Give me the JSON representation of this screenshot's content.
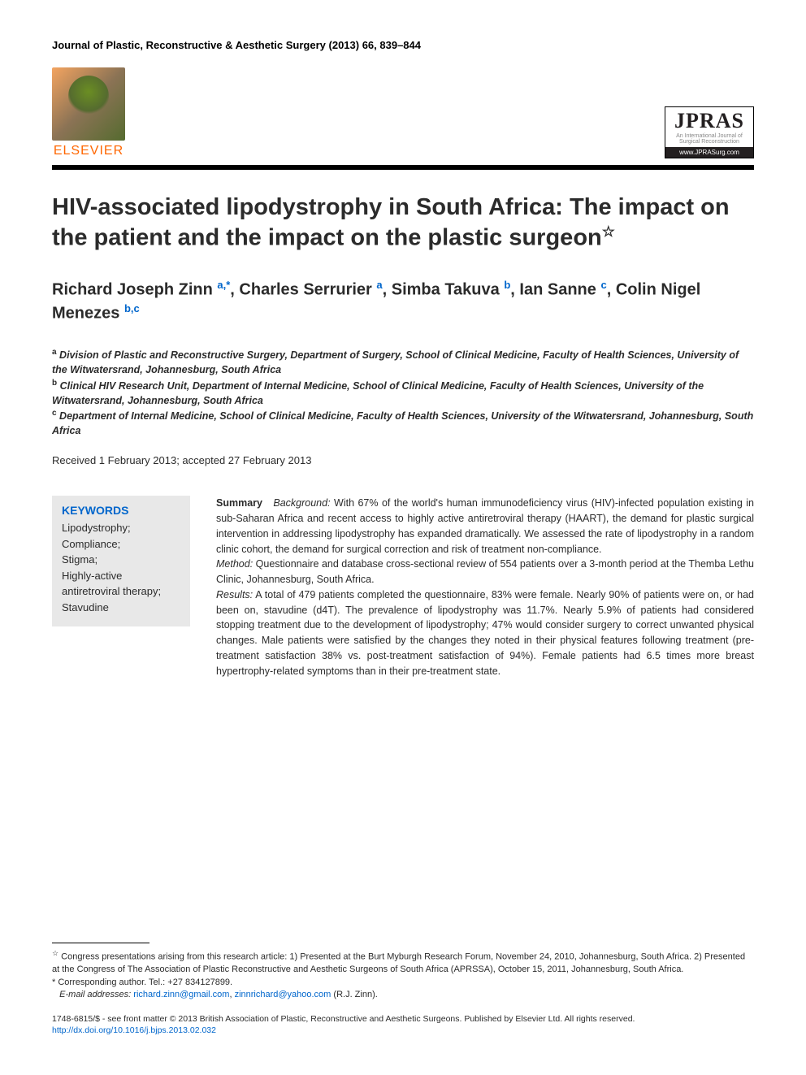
{
  "journal_header": "Journal of Plastic, Reconstructive & Aesthetic Surgery (2013) 66, 839–844",
  "elsevier": {
    "wordmark": "ELSEVIER"
  },
  "jpras": {
    "title": "JPRAS",
    "subtitle": "An International Journal of Surgical Reconstruction",
    "url": "www.JPRASurg.com"
  },
  "article_title": "HIV-associated lipodystrophy in South Africa: The impact on the patient and the impact on the plastic surgeon",
  "title_star": "☆",
  "authors": [
    {
      "name": "Richard Joseph Zinn",
      "aff": "a,*"
    },
    {
      "name": "Charles Serrurier",
      "aff": "a"
    },
    {
      "name": "Simba Takuva",
      "aff": "b"
    },
    {
      "name": "Ian Sanne",
      "aff": "c"
    },
    {
      "name": "Colin Nigel Menezes",
      "aff": "b,c"
    }
  ],
  "affiliations": {
    "a": "Division of Plastic and Reconstructive Surgery, Department of Surgery, School of Clinical Medicine, Faculty of Health Sciences, University of the Witwatersrand, Johannesburg, South Africa",
    "b": "Clinical HIV Research Unit, Department of Internal Medicine, School of Clinical Medicine, Faculty of Health Sciences, University of the Witwatersrand, Johannesburg, South Africa",
    "c": "Department of Internal Medicine, School of Clinical Medicine, Faculty of Health Sciences, University of the Witwatersrand, Johannesburg, South Africa"
  },
  "dates": "Received 1 February 2013; accepted 27 February 2013",
  "keywords": {
    "heading": "KEYWORDS",
    "list": "Lipodystrophy;\nCompliance;\nStigma;\nHighly-active antiretroviral therapy;\nStavudine"
  },
  "summary": {
    "label": "Summary",
    "sections": {
      "background_label": "Background:",
      "background": " With 67% of the world's human immunodeficiency virus (HIV)-infected population existing in sub-Saharan Africa and recent access to highly active antiretroviral therapy (HAART), the demand for plastic surgical intervention in addressing lipodystrophy has expanded dramatically. We assessed the rate of lipodystrophy in a random clinic cohort, the demand for surgical correction and risk of treatment non-compliance.",
      "method_label": "Method:",
      "method": " Questionnaire and database cross-sectional review of 554 patients over a 3-month period at the Themba Lethu Clinic, Johannesburg, South Africa.",
      "results_label": "Results:",
      "results": " A total of 479 patients completed the questionnaire, 83% were female. Nearly 90% of patients were on, or had been on, stavudine (d4T). The prevalence of lipodystrophy was 11.7%. Nearly 5.9% of patients had considered stopping treatment due to the development of lipodystrophy; 47% would consider surgery to correct unwanted physical changes. Male patients were satisfied by the changes they noted in their physical features following treatment (pre-treatment satisfaction 38% vs. post-treatment satisfaction of 94%). Female patients had 6.5 times more breast hypertrophy-related symptoms than in their pre-treatment state."
    }
  },
  "footnotes": {
    "congress_star": "☆",
    "congress": " Congress presentations arising from this research article: 1) Presented at the Burt Myburgh Research Forum, November 24, 2010, Johannesburg, South Africa. 2) Presented at the Congress of The Association of Plastic Reconstructive and Aesthetic Surgeons of South Africa (APRSSA), October 15, 2011, Johannesburg, South Africa.",
    "corresponding": "* Corresponding author. Tel.: +27 834127899.",
    "email_label": "E-mail addresses:",
    "email1": "richard.zinn@gmail.com",
    "email2": "zinnrichard@yahoo.com",
    "email_tail": " (R.J. Zinn)."
  },
  "copyright": {
    "line": "1748-6815/$ - see front matter © 2013 British Association of Plastic, Reconstructive and Aesthetic Surgeons. Published by Elsevier Ltd. All rights reserved.",
    "doi": "http://dx.doi.org/10.1016/j.bjps.2013.02.032"
  },
  "colors": {
    "link_blue": "#0066cc",
    "text_dark": "#2b2b2b",
    "elsevier_orange": "#ff6600",
    "keywords_bg": "#e8e8e8",
    "rule_black": "#000000"
  }
}
